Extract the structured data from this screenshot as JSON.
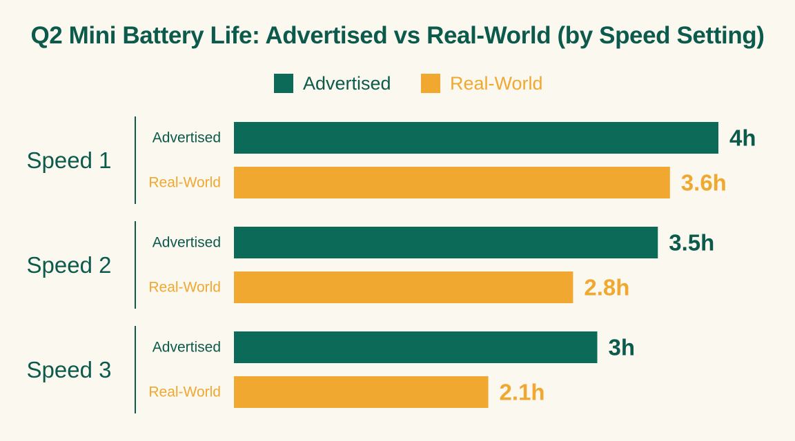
{
  "colors": {
    "advertised": "#0b6b58",
    "real_world": "#f0a830",
    "title": "#0b5a4b",
    "background": "#fbf8ef"
  },
  "chart_data": {
    "type": "bar",
    "orientation": "horizontal",
    "title": "Q2 Mini Battery Life: Advertised vs Real-World (by Speed Setting)",
    "legend_position": "top-center",
    "grid": false,
    "categories": [
      "Speed 1",
      "Speed 2",
      "Speed 3"
    ],
    "series": [
      {
        "name": "Advertised",
        "values": [
          4,
          3.5,
          3
        ],
        "labels": [
          "4h",
          "3.5h",
          "3h"
        ],
        "color": "#0b6b58"
      },
      {
        "name": "Real-World",
        "values": [
          3.6,
          2.8,
          2.1
        ],
        "labels": [
          "3.6h",
          "2.8h",
          "2.1h"
        ],
        "color": "#f0a830"
      }
    ],
    "xlim": [
      0,
      4
    ]
  }
}
